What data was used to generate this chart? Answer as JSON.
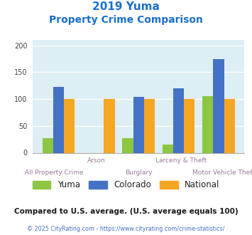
{
  "title_line1": "2019 Yuma",
  "title_line2": "Property Crime Comparison",
  "title_color": "#1a6fcc",
  "categories": [
    "All Property Crime",
    "Arson",
    "Burglary",
    "Larceny & Theft",
    "Motor Vehicle Theft"
  ],
  "cat_row1": [
    "",
    "Arson",
    "",
    "Larceny & Theft",
    ""
  ],
  "cat_row2": [
    "All Property Crime",
    "",
    "Burglary",
    "",
    "Motor Vehicle Theft"
  ],
  "yuma": [
    27,
    0,
    27,
    15,
    106
  ],
  "colorado": [
    123,
    0,
    104,
    120,
    175
  ],
  "national": [
    100,
    100,
    100,
    100,
    100
  ],
  "color_yuma": "#8dc641",
  "color_colorado": "#4472c4",
  "color_national": "#f5a623",
  "ylim": [
    0,
    210
  ],
  "yticks": [
    0,
    50,
    100,
    150,
    200
  ],
  "bg_color": "#ddeef5",
  "footnote": "Compared to U.S. average. (U.S. average equals 100)",
  "footnote_color": "#1a1a1a",
  "credit": "© 2025 CityRating.com - https://www.cityrating.com/crime-statistics/",
  "credit_color": "#4472c4",
  "xlabel_color": "#9b7b9b",
  "legend_labels": [
    "Yuma",
    "Colorado",
    "National"
  ]
}
